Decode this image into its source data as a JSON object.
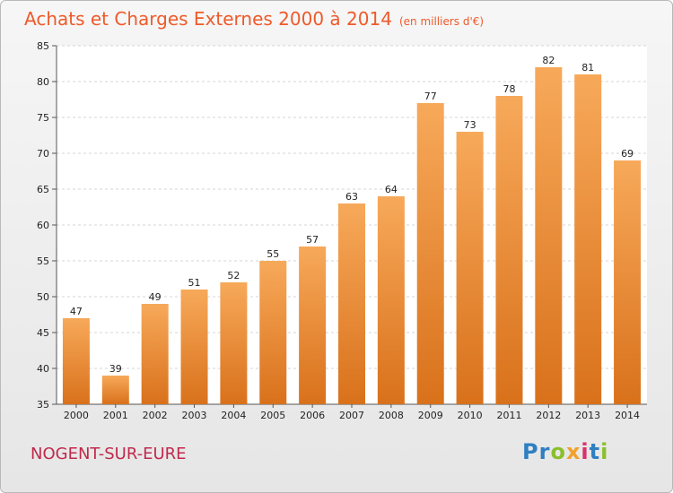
{
  "header": {
    "title": "Achats et Charges Externes 2000 à 2014",
    "unit": "(en milliers d'€)"
  },
  "footer": {
    "city": "NOGENT-SUR-EURE",
    "brand_letters": [
      {
        "char": "P",
        "color": "#2f7fc1"
      },
      {
        "char": "r",
        "color": "#2f7fc1"
      },
      {
        "char": "o",
        "color": "#8bbf2c"
      },
      {
        "char": "x",
        "color": "#f0a22a"
      },
      {
        "char": "i",
        "color": "#d9306b"
      },
      {
        "char": "t",
        "color": "#2f7fc1"
      },
      {
        "char": "i",
        "color": "#8bbf2c"
      }
    ]
  },
  "chart_data": {
    "type": "bar",
    "categories": [
      "2000",
      "2001",
      "2002",
      "2003",
      "2004",
      "2005",
      "2006",
      "2007",
      "2008",
      "2009",
      "2010",
      "2011",
      "2012",
      "2013",
      "2014"
    ],
    "values": [
      47,
      39,
      49,
      51,
      52,
      55,
      57,
      63,
      64,
      77,
      73,
      78,
      82,
      81,
      69
    ],
    "ylim": [
      35,
      85
    ],
    "yticks": [
      35,
      40,
      45,
      50,
      55,
      60,
      65,
      70,
      75,
      80,
      85
    ],
    "grid": true,
    "bar_color_top": "#f7a95a",
    "bar_color_bottom": "#d9711b"
  }
}
